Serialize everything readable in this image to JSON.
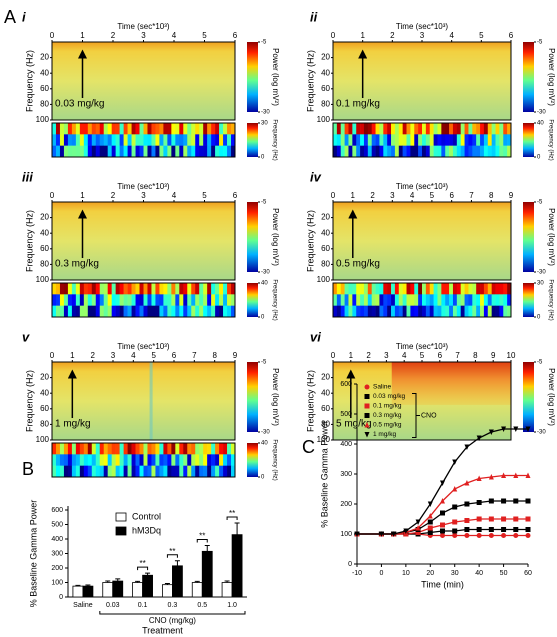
{
  "figure_labels": [
    "A",
    "B",
    "C"
  ],
  "spectrogram_text": {
    "x_label": "Time (sec*10³)",
    "y_label": "Frequency (Hz)",
    "power_label": "Power (log mV²)",
    "freq_label": "Frequency (Hz)"
  },
  "spectrograms": [
    {
      "label": "i",
      "dose": "0.03 mg/kg",
      "xlim": [
        0,
        6
      ],
      "xticks": [
        0,
        1,
        2,
        3,
        4,
        5,
        6
      ],
      "ylim": [
        0,
        100
      ],
      "yticks": [
        20,
        40,
        60,
        80,
        100
      ],
      "power_ticks": [
        -5,
        -30
      ],
      "freq_ticks": [
        30,
        0
      ]
    },
    {
      "label": "ii",
      "dose": "0.1 mg/kg",
      "xlim": [
        0,
        6
      ],
      "xticks": [
        0,
        1,
        2,
        3,
        4,
        5,
        6
      ],
      "ylim": [
        0,
        100
      ],
      "yticks": [
        20,
        40,
        60,
        80,
        100
      ],
      "power_ticks": [
        -5,
        -30
      ],
      "freq_ticks": [
        40,
        0
      ]
    },
    {
      "label": "iii",
      "dose": "0.3 mg/kg",
      "xlim": [
        0,
        6
      ],
      "xticks": [
        0,
        1,
        2,
        3,
        4,
        5,
        6
      ],
      "ylim": [
        0,
        100
      ],
      "yticks": [
        20,
        40,
        60,
        80,
        100
      ],
      "power_ticks": [
        -5,
        -30
      ],
      "freq_ticks": [
        40,
        0
      ]
    },
    {
      "label": "iv",
      "dose": "0.5 mg/kg",
      "xlim": [
        0,
        9
      ],
      "xticks": [
        0,
        1,
        2,
        3,
        4,
        5,
        6,
        7,
        8,
        9
      ],
      "ylim": [
        0,
        100
      ],
      "yticks": [
        20,
        40,
        60,
        80,
        100
      ],
      "power_ticks": [
        -5,
        -30
      ],
      "freq_ticks": [
        30,
        0
      ]
    },
    {
      "label": "v",
      "dose": "1 mg/kg",
      "xlim": [
        0,
        9
      ],
      "xticks": [
        0,
        1,
        2,
        3,
        4,
        5,
        6,
        7,
        8,
        9
      ],
      "ylim": [
        0,
        100
      ],
      "yticks": [
        20,
        40,
        60,
        80,
        100
      ],
      "power_ticks": [
        -5,
        -30
      ],
      "freq_ticks": [
        40,
        0
      ]
    },
    {
      "label": "vi",
      "dose": "5 mg/kg",
      "xlim": [
        0,
        10
      ],
      "xticks": [
        0,
        1,
        2,
        3,
        4,
        5,
        6,
        7,
        8,
        9,
        10
      ],
      "ylim": [
        0,
        100
      ],
      "yticks": [
        20,
        40,
        60,
        80,
        100
      ],
      "power_ticks": [
        -5,
        -30
      ]
    }
  ],
  "chart_data": [
    {
      "type": "bar",
      "y_label": "% Baseline Gamma Power",
      "x_label": "Treatment",
      "group_label": "CNO (mg/kg)",
      "categories": [
        "Saline",
        "0.03",
        "0.1",
        "0.3",
        "0.5",
        "1.0"
      ],
      "series": [
        {
          "name": "Control",
          "color": "#ffffff",
          "values": [
            75,
            100,
            100,
            85,
            100,
            100
          ],
          "errors": [
            5,
            10,
            8,
            8,
            8,
            10
          ]
        },
        {
          "name": "hM3Dq",
          "color": "#000000",
          "values": [
            75,
            110,
            150,
            215,
            315,
            430
          ],
          "errors": [
            8,
            15,
            15,
            35,
            40,
            80
          ]
        }
      ],
      "significance": [
        null,
        null,
        "**",
        "**",
        "**",
        "**"
      ],
      "ylim": [
        0,
        600
      ],
      "yticks": [
        0,
        100,
        200,
        300,
        400,
        500,
        600
      ]
    },
    {
      "type": "line",
      "y_label": "% Baseline Gamma Power",
      "x_label": "Time (min)",
      "legend_group_label": "CNO",
      "x": [
        -10,
        0,
        5,
        10,
        15,
        20,
        25,
        30,
        35,
        40,
        45,
        50,
        55,
        60
      ],
      "series": [
        {
          "name": "Saline",
          "color": "#e02020",
          "marker": "circle",
          "values": [
            100,
            100,
            100,
            100,
            100,
            95,
            95,
            95,
            95,
            95,
            95,
            95,
            95,
            95
          ]
        },
        {
          "name": "0.03 mg/kg",
          "color": "#000000",
          "marker": "square",
          "values": [
            100,
            100,
            100,
            100,
            100,
            105,
            110,
            110,
            115,
            115,
            115,
            115,
            115,
            115
          ]
        },
        {
          "name": "0.1 mg/kg",
          "color": "#e02020",
          "marker": "square",
          "values": [
            100,
            100,
            100,
            100,
            105,
            120,
            130,
            140,
            145,
            150,
            150,
            150,
            150,
            150
          ]
        },
        {
          "name": "0.3 mg/kg",
          "color": "#000000",
          "marker": "square",
          "values": [
            100,
            100,
            100,
            105,
            115,
            140,
            170,
            190,
            200,
            205,
            210,
            210,
            210,
            210
          ]
        },
        {
          "name": "0.5 mg/kg",
          "color": "#e02020",
          "marker": "triangle",
          "values": [
            100,
            100,
            100,
            105,
            120,
            160,
            210,
            250,
            270,
            285,
            290,
            295,
            295,
            295
          ]
        },
        {
          "name": "1 mg/kg",
          "color": "#000000",
          "marker": "triangle-down",
          "values": [
            100,
            100,
            100,
            110,
            140,
            200,
            270,
            340,
            390,
            420,
            440,
            450,
            450,
            450
          ]
        }
      ],
      "xlim": [
        -10,
        60
      ],
      "xticks": [
        -10,
        0,
        10,
        20,
        30,
        40,
        50,
        60
      ],
      "ylim": [
        0,
        600
      ],
      "yticks": [
        0,
        100,
        200,
        300,
        400,
        500,
        600
      ]
    }
  ]
}
